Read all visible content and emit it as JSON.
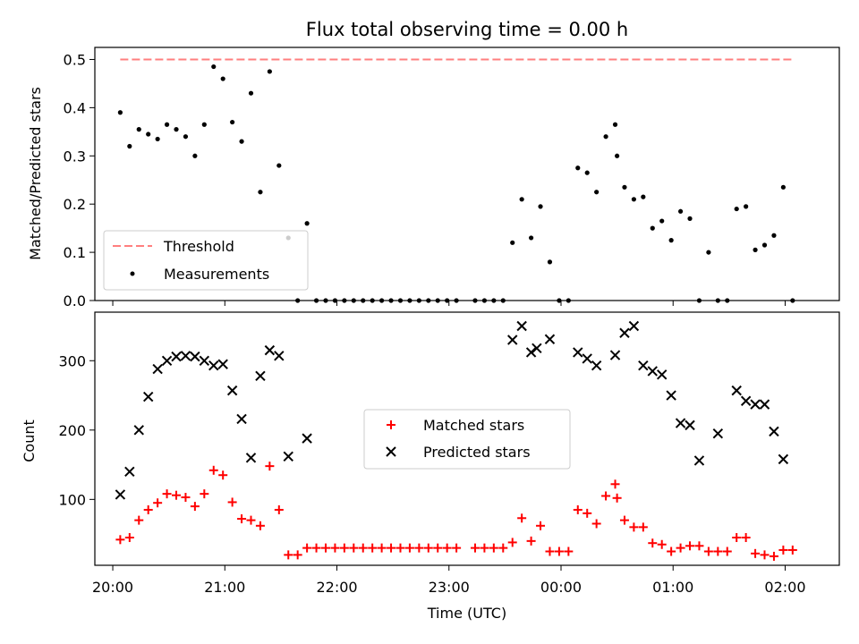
{
  "chart_data": [
    {
      "type": "scatter",
      "title": "Flux total observing time = 0.00 h",
      "xlabel": "",
      "ylabel": "Matched/Predicted stars",
      "ylim": [
        0,
        0.525
      ],
      "yticks": [
        "0.0",
        "0.1",
        "0.2",
        "0.3",
        "0.4",
        "0.5"
      ],
      "threshold": {
        "name": "Threshold",
        "value": 0.5,
        "x_start": "20:04",
        "x_end": "02:04",
        "color": "#ff7f7f"
      },
      "series": [
        {
          "name": "Measurements",
          "color": "#000000",
          "x": [
            "20:04",
            "20:09",
            "20:14",
            "20:19",
            "20:24",
            "20:29",
            "20:34",
            "20:39",
            "20:44",
            "20:49",
            "20:54",
            "20:59",
            "21:04",
            "21:09",
            "21:14",
            "21:19",
            "21:24",
            "21:29",
            "21:34",
            "21:39",
            "21:44",
            "21:49",
            "21:54",
            "21:59",
            "22:04",
            "22:09",
            "22:14",
            "22:19",
            "22:24",
            "22:29",
            "22:34",
            "22:39",
            "22:44",
            "22:49",
            "22:54",
            "22:59",
            "23:04",
            "23:14",
            "23:19",
            "23:24",
            "23:29",
            "23:34",
            "23:39",
            "23:44",
            "23:49",
            "23:54",
            "23:59",
            "00:04",
            "00:09",
            "00:14",
            "00:19",
            "00:24",
            "00:29",
            "00:30",
            "00:34",
            "00:39",
            "00:44",
            "00:49",
            "00:54",
            "00:59",
            "01:04",
            "01:09",
            "01:14",
            "01:19",
            "01:24",
            "01:29",
            "01:34",
            "01:39",
            "01:44",
            "01:49",
            "01:54",
            "01:59",
            "02:04"
          ],
          "y": [
            0.39,
            0.32,
            0.355,
            0.345,
            0.335,
            0.365,
            0.355,
            0.34,
            0.3,
            0.365,
            0.485,
            0.46,
            0.37,
            0.33,
            0.43,
            0.225,
            0.475,
            0.28,
            0.13,
            0.0,
            0.16,
            0.0,
            0.0,
            0.0,
            0.0,
            0.0,
            0.0,
            0.0,
            0.0,
            0.0,
            0.0,
            0.0,
            0.0,
            0.0,
            0.0,
            0.0,
            0.0,
            0.0,
            0.0,
            0.0,
            0.0,
            0.12,
            0.21,
            0.13,
            0.195,
            0.08,
            0.0,
            0.0,
            0.275,
            0.265,
            0.225,
            0.34,
            0.365,
            0.3,
            0.235,
            0.21,
            0.215,
            0.15,
            0.165,
            0.125,
            0.185,
            0.17,
            0.0,
            0.1,
            0.0,
            0.0,
            0.19,
            0.195,
            0.105,
            0.115,
            0.135,
            0.235,
            0.0
          ]
        }
      ]
    },
    {
      "type": "scatter",
      "xlabel": "Time (UTC)",
      "ylabel": "Count",
      "ylim": [
        5,
        370
      ],
      "yticks": [
        "100",
        "200",
        "300"
      ],
      "xticks": [
        "20:00",
        "21:00",
        "22:00",
        "23:00",
        "00:00",
        "01:00",
        "02:00"
      ],
      "series": [
        {
          "name": "Matched stars",
          "marker": "+",
          "color": "#ff0000",
          "x": [
            "20:04",
            "20:09",
            "20:14",
            "20:19",
            "20:24",
            "20:29",
            "20:34",
            "20:39",
            "20:44",
            "20:49",
            "20:54",
            "20:59",
            "21:04",
            "21:09",
            "21:14",
            "21:19",
            "21:24",
            "21:29",
            "21:34",
            "21:39",
            "21:44",
            "21:49",
            "21:54",
            "21:59",
            "22:04",
            "22:09",
            "22:14",
            "22:19",
            "22:24",
            "22:29",
            "22:34",
            "22:39",
            "22:44",
            "22:49",
            "22:54",
            "22:59",
            "23:04",
            "23:14",
            "23:19",
            "23:24",
            "23:29",
            "23:34",
            "23:39",
            "23:44",
            "23:49",
            "23:54",
            "23:59",
            "00:04",
            "00:09",
            "00:14",
            "00:19",
            "00:24",
            "00:29",
            "00:30",
            "00:34",
            "00:39",
            "00:44",
            "00:49",
            "00:54",
            "00:59",
            "01:04",
            "01:09",
            "01:14",
            "01:19",
            "01:24",
            "01:29",
            "01:34",
            "01:39",
            "01:44",
            "01:49",
            "01:54",
            "01:59",
            "02:04"
          ],
          "y": [
            42,
            45,
            70,
            85,
            95,
            108,
            106,
            103,
            90,
            108,
            142,
            135,
            96,
            72,
            70,
            62,
            148,
            85,
            20,
            20,
            30,
            30,
            30,
            30,
            30,
            30,
            30,
            30,
            30,
            30,
            30,
            30,
            30,
            30,
            30,
            30,
            30,
            30,
            30,
            30,
            30,
            38,
            73,
            40,
            62,
            25,
            25,
            25,
            85,
            80,
            65,
            105,
            122,
            102,
            70,
            60,
            60,
            37,
            35,
            25,
            30,
            33,
            33,
            25,
            25,
            25,
            45,
            45,
            22,
            20,
            18,
            27,
            27
          ]
        },
        {
          "name": "Predicted stars",
          "marker": "x",
          "color": "#000000",
          "x": [
            "20:04",
            "20:09",
            "20:14",
            "20:19",
            "20:24",
            "20:29",
            "20:34",
            "20:39",
            "20:44",
            "20:49",
            "20:54",
            "20:59",
            "21:04",
            "21:09",
            "21:14",
            "21:19",
            "21:24",
            "21:29",
            "21:34",
            "21:44",
            "23:34",
            "23:39",
            "23:44",
            "23:47",
            "23:54",
            "00:09",
            "00:14",
            "00:19",
            "00:29",
            "00:34",
            "00:39",
            "00:44",
            "00:49",
            "00:54",
            "00:59",
            "01:04",
            "01:09",
            "01:14",
            "01:24",
            "01:34",
            "01:39",
            "01:44",
            "01:49",
            "01:54",
            "01:59"
          ],
          "y": [
            107,
            140,
            200,
            248,
            288,
            300,
            306,
            307,
            306,
            300,
            293,
            295,
            257,
            216,
            160,
            278,
            315,
            307,
            162,
            188,
            330,
            350,
            312,
            318,
            331,
            312,
            303,
            293,
            308,
            340,
            350,
            293,
            285,
            280,
            250,
            210,
            207,
            156,
            195,
            257,
            242,
            237,
            237,
            198,
            158
          ]
        }
      ]
    }
  ]
}
